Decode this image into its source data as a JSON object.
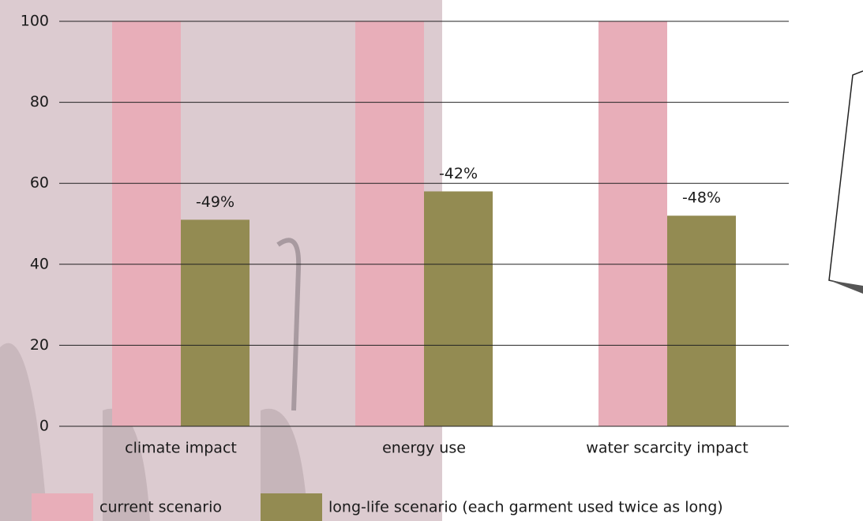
{
  "chart_data": {
    "type": "bar",
    "categories": [
      "climate impact",
      "energy use",
      "water scarcity impact"
    ],
    "series": [
      {
        "name": "current scenario",
        "color": "#e8aeb9",
        "values": [
          100,
          100,
          100
        ]
      },
      {
        "name": "long-life scenario (each garment used twice as long)",
        "color": "#938b52",
        "values": [
          51,
          58,
          52
        ]
      }
    ],
    "annotations": [
      "-49%",
      "-42%",
      "-48%"
    ],
    "ylim": [
      0,
      100
    ],
    "yticks": [
      0,
      20,
      40,
      60,
      80,
      100
    ],
    "grid": true,
    "legend": "bottom"
  }
}
